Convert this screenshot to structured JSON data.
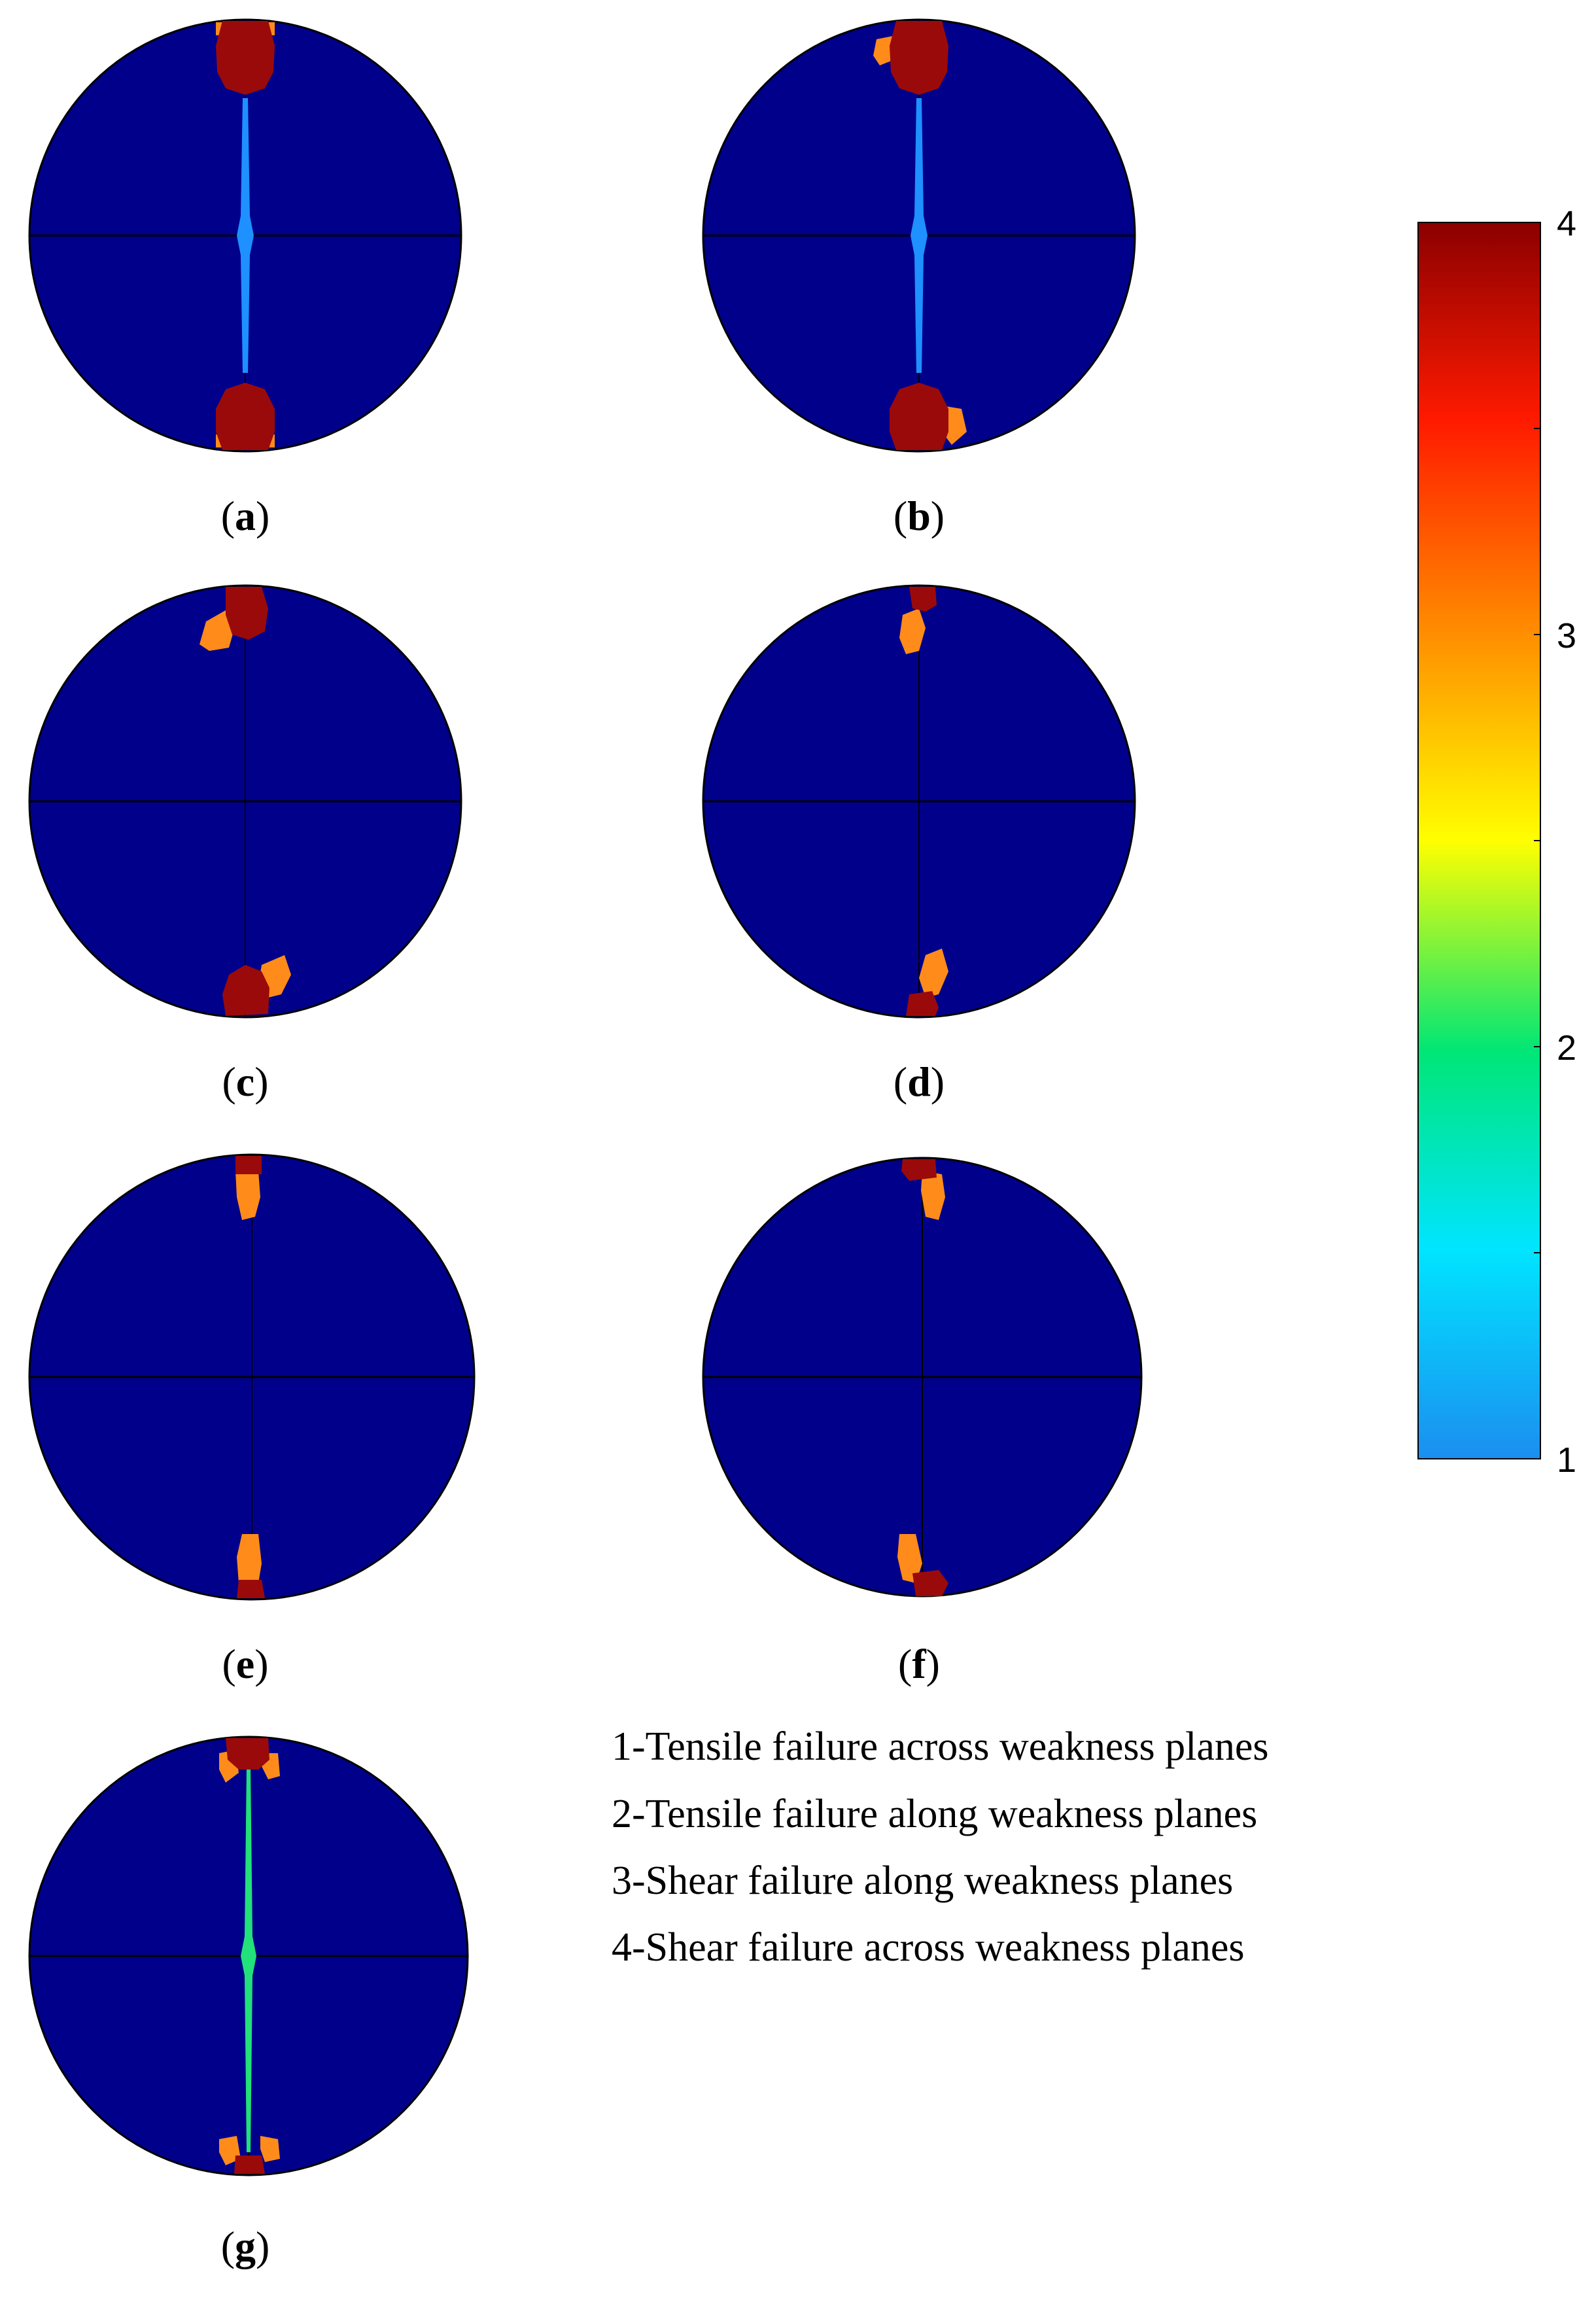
{
  "panels": [
    {
      "id": "a",
      "label": "a",
      "crack": "blue",
      "zones": "vertical"
    },
    {
      "id": "b",
      "label": "b",
      "crack": "blue",
      "zones": "vertical-offset"
    },
    {
      "id": "c",
      "label": "c",
      "crack": "none",
      "zones": "tilted-large"
    },
    {
      "id": "d",
      "label": "d",
      "crack": "none",
      "zones": "tilted-small"
    },
    {
      "id": "e",
      "label": "e",
      "crack": "none",
      "zones": "small-vertical"
    },
    {
      "id": "f",
      "label": "f",
      "crack": "none",
      "zones": "small-offset"
    },
    {
      "id": "g",
      "label": "g",
      "crack": "green",
      "zones": "split"
    }
  ],
  "legend": [
    {
      "text": "1-Tensile failure across weakness planes"
    },
    {
      "text": "2-Tensile failure along weakness planes"
    },
    {
      "text": "3-Shear failure along weakness planes"
    },
    {
      "text": "4-Shear failure across weakness planes"
    }
  ],
  "colorbar": {
    "ticks": [
      "4",
      "3",
      "2",
      "1"
    ],
    "min": 1,
    "max": 4,
    "colors": [
      "#1b8ef0",
      "#00e5ff",
      "#00e676",
      "#ffff00",
      "#ff8c00",
      "#ff1a00",
      "#8b0000"
    ]
  },
  "colors": {
    "disk": "#00008b",
    "tensile_across": "#1e90ff",
    "tensile_along": "#22e07a",
    "shear_along": "#ff8c1a",
    "shear_across": "#9b0a0a"
  }
}
